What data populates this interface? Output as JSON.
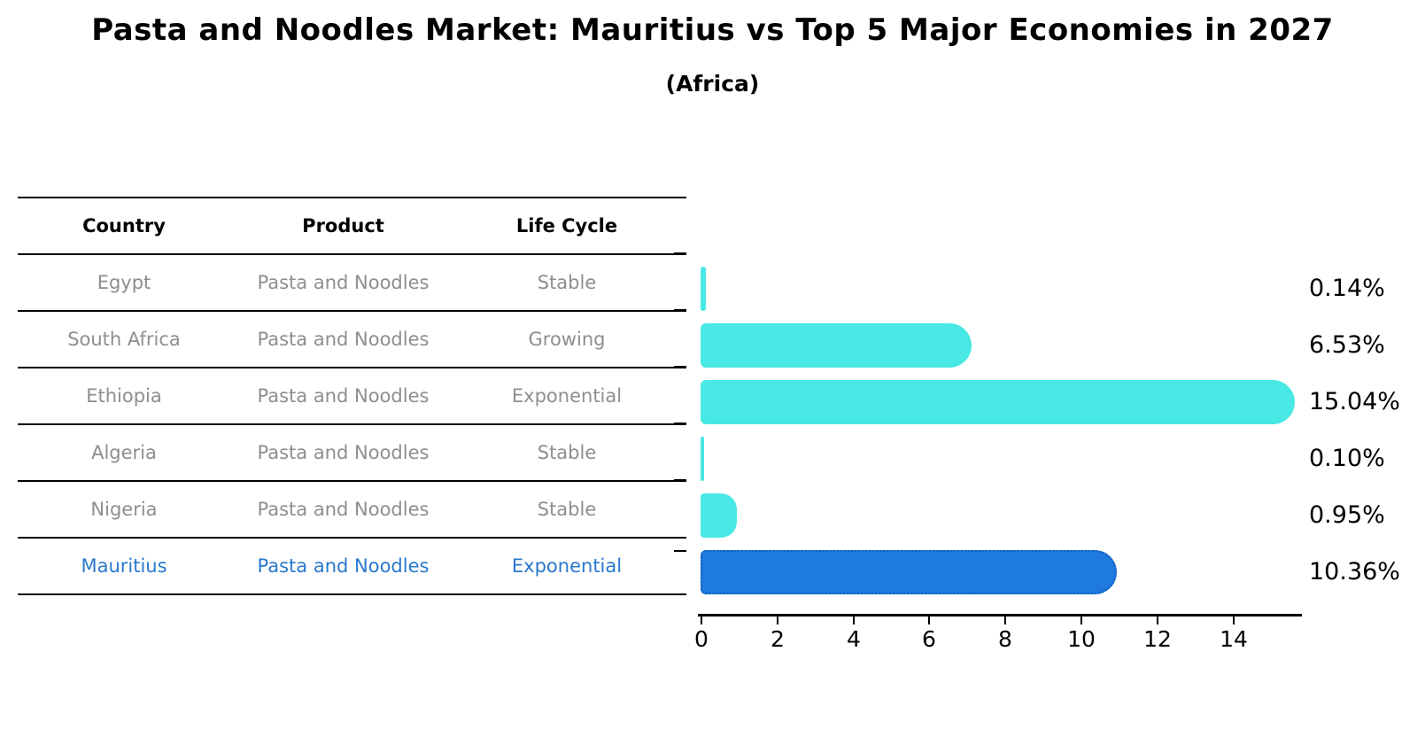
{
  "title": "Pasta and Noodles Market: Mauritius vs Top 5 Major Economies in 2027",
  "subtitle": "(Africa)",
  "table": {
    "headers": [
      "Country",
      "Product",
      "Life Cycle"
    ],
    "rows": [
      {
        "country": "Egypt",
        "product": "Pasta and Noodles",
        "life_cycle": "Stable",
        "highlighted": false
      },
      {
        "country": "South Africa",
        "product": "Pasta and Noodles",
        "life_cycle": "Growing",
        "highlighted": false
      },
      {
        "country": "Ethiopia",
        "product": "Pasta and Noodles",
        "life_cycle": "Exponential",
        "highlighted": false
      },
      {
        "country": "Algeria",
        "product": "Pasta and Noodles",
        "life_cycle": "Stable",
        "highlighted": false
      },
      {
        "country": "Nigeria",
        "product": "Pasta and Noodles",
        "life_cycle": "Stable",
        "highlighted": false
      },
      {
        "country": "Mauritius",
        "product": "Pasta and Noodles",
        "life_cycle": "Exponential",
        "highlighted": true
      }
    ]
  },
  "chart_data": {
    "type": "bar",
    "orientation": "horizontal",
    "categories": [
      "Egypt",
      "South Africa",
      "Ethiopia",
      "Algeria",
      "Nigeria",
      "Mauritius"
    ],
    "values": [
      0.14,
      6.53,
      15.04,
      0.1,
      0.95,
      10.36
    ],
    "value_labels": [
      "0.14%",
      "6.53%",
      "15.04%",
      "0.10%",
      "0.95%",
      "10.36%"
    ],
    "x_ticks": [
      "0",
      "2",
      "4",
      "6",
      "8",
      "10",
      "12",
      "14"
    ],
    "xlim": [
      0,
      15.8
    ],
    "grid": false,
    "legend": false,
    "bar_color": "#48e8e4",
    "highlight_color": "#1e7adf",
    "highlight_border_color": "#155cc0",
    "highlight_index": 5,
    "title": "Pasta and Noodles Market: Mauritius vs Top 5 Major Economies in 2027",
    "subtitle": "(Africa)",
    "xlabel": "",
    "ylabel": ""
  },
  "colors": {
    "text_black": "#000000",
    "table_text_gray": "#8e8e8e",
    "highlight_text_blue": "#2878cd",
    "background": "#ffffff"
  }
}
